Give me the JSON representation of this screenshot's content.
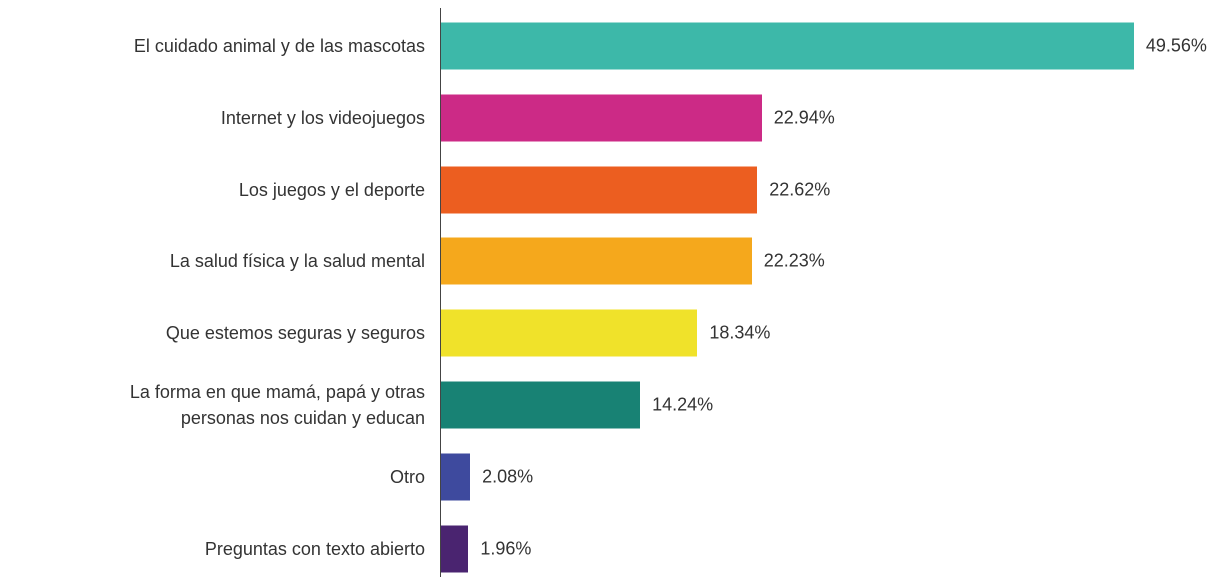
{
  "chart_data": {
    "type": "bar",
    "orientation": "horizontal",
    "categories": [
      "El cuidado animal y de las mascotas",
      "Internet y los videojuegos",
      "Los juegos y el deporte",
      "La salud física y la salud mental",
      "Que estemos seguras y seguros",
      "La forma en que mamá, papá y otras\npersonas nos cuidan y educan",
      "Otro",
      "Preguntas con texto abierto"
    ],
    "values": [
      49.56,
      22.94,
      22.62,
      22.23,
      18.34,
      14.24,
      2.08,
      1.96
    ],
    "value_labels": [
      "49.56%",
      "22.94%",
      "22.62%",
      "22.23%",
      "18.34%",
      "14.24%",
      "2.08%",
      "1.96%"
    ],
    "colors": [
      "#3db8a9",
      "#cc2a86",
      "#ec5e20",
      "#f5a81c",
      "#f0e22a",
      "#188274",
      "#3e4a9e",
      "#4a2470"
    ]
  }
}
